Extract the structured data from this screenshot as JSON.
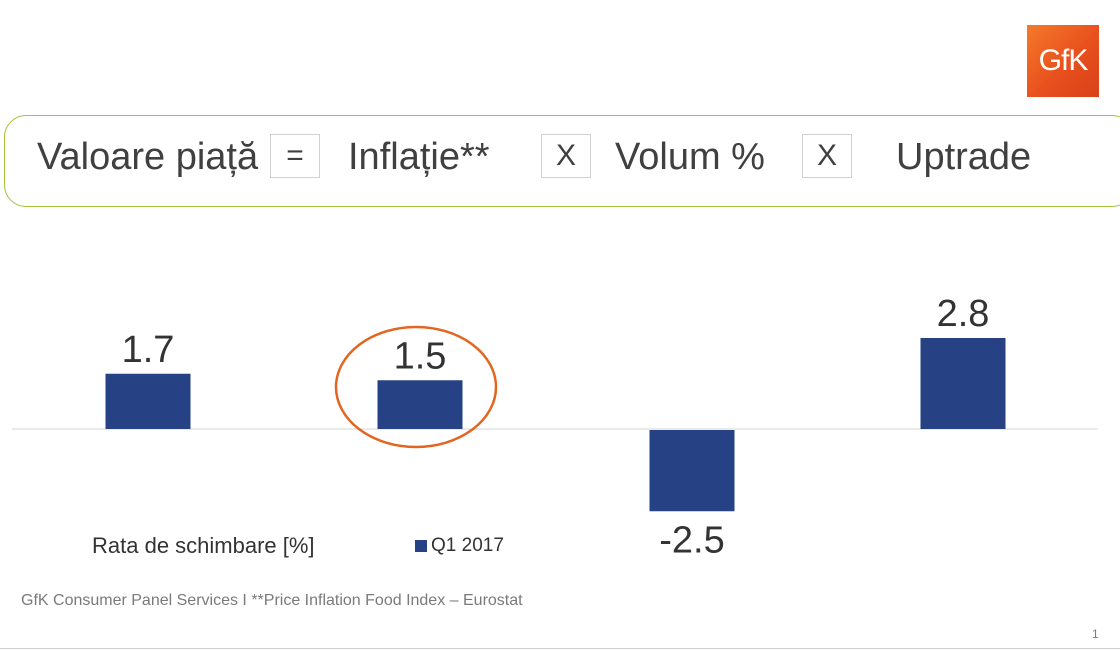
{
  "logo": {
    "text": "GfK",
    "color": "#e8501e"
  },
  "formula": {
    "border_color": "#a3c437",
    "terms": [
      "Valoare piață",
      "Inflație**",
      "Volum %",
      "Uptrade"
    ],
    "operators": [
      "=",
      "X",
      "X"
    ]
  },
  "chart_data": {
    "type": "bar",
    "title": "Rata de schimbare [%]",
    "categories": [
      "Valoare piață",
      "Inflație**",
      "Volum %",
      "Uptrade"
    ],
    "series": [
      {
        "name": "Q1 2017",
        "values": [
          1.7,
          1.5,
          -2.5,
          2.8
        ],
        "color": "#264285"
      }
    ],
    "data_labels": [
      "1.7",
      "1.5",
      "-2.5",
      "2.8"
    ],
    "ylim": [
      -4.5,
      4.5
    ],
    "xlabel": "",
    "ylabel": "",
    "grid": false,
    "legend_position": "bottom-left",
    "highlight": {
      "category_index": 1,
      "shape": "ellipse",
      "color": "#e2661f"
    }
  },
  "footer": "GfK Consumer Panel Services I **Price Inflation Food Index – Eurostat",
  "page_number": "1"
}
